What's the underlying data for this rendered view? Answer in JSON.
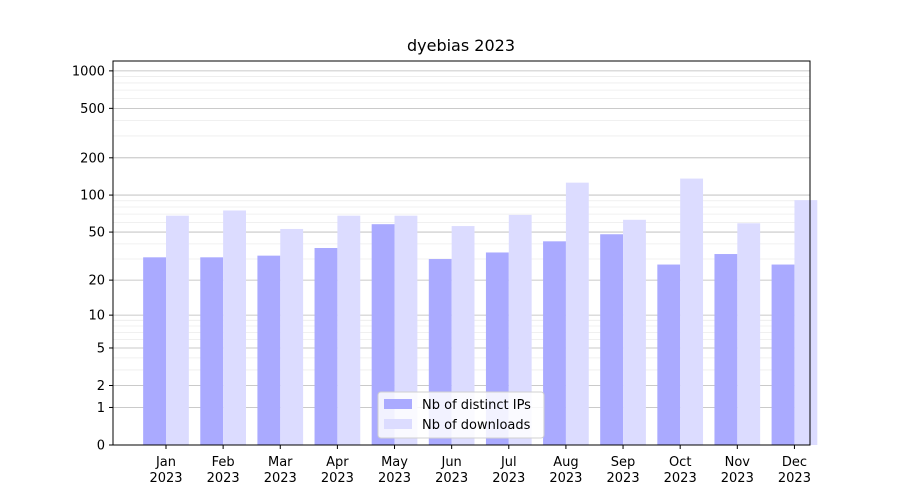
{
  "chart_data": {
    "type": "bar",
    "title": "dyebias 2023",
    "xlabel": "",
    "ylabel": "",
    "yscale": "log(1+y)",
    "ylim": [
      0,
      1200
    ],
    "yticks": [
      0,
      1,
      2,
      5,
      10,
      20,
      50,
      100,
      200,
      500,
      1000
    ],
    "ytick_labels": [
      "0",
      "1",
      "2",
      "5",
      "10",
      "20",
      "50",
      "100",
      "200",
      "500",
      "1000"
    ],
    "grid": true,
    "legend_position": "bottom-center",
    "categories": [
      [
        "Jan",
        "2023"
      ],
      [
        "Feb",
        "2023"
      ],
      [
        "Mar",
        "2023"
      ],
      [
        "Apr",
        "2023"
      ],
      [
        "May",
        "2023"
      ],
      [
        "Jun",
        "2023"
      ],
      [
        "Jul",
        "2023"
      ],
      [
        "Aug",
        "2023"
      ],
      [
        "Sep",
        "2023"
      ],
      [
        "Oct",
        "2023"
      ],
      [
        "Nov",
        "2023"
      ],
      [
        "Dec",
        "2023"
      ]
    ],
    "series": [
      {
        "name": "Nb of distinct IPs",
        "color": "#aaaaff",
        "values": [
          31,
          31,
          32,
          37,
          58,
          30,
          34,
          42,
          48,
          27,
          33,
          27
        ]
      },
      {
        "name": "Nb of downloads",
        "color": "#dcdcff",
        "values": [
          68,
          75,
          53,
          68,
          68,
          56,
          69,
          126,
          63,
          136,
          59,
          91
        ]
      }
    ]
  }
}
